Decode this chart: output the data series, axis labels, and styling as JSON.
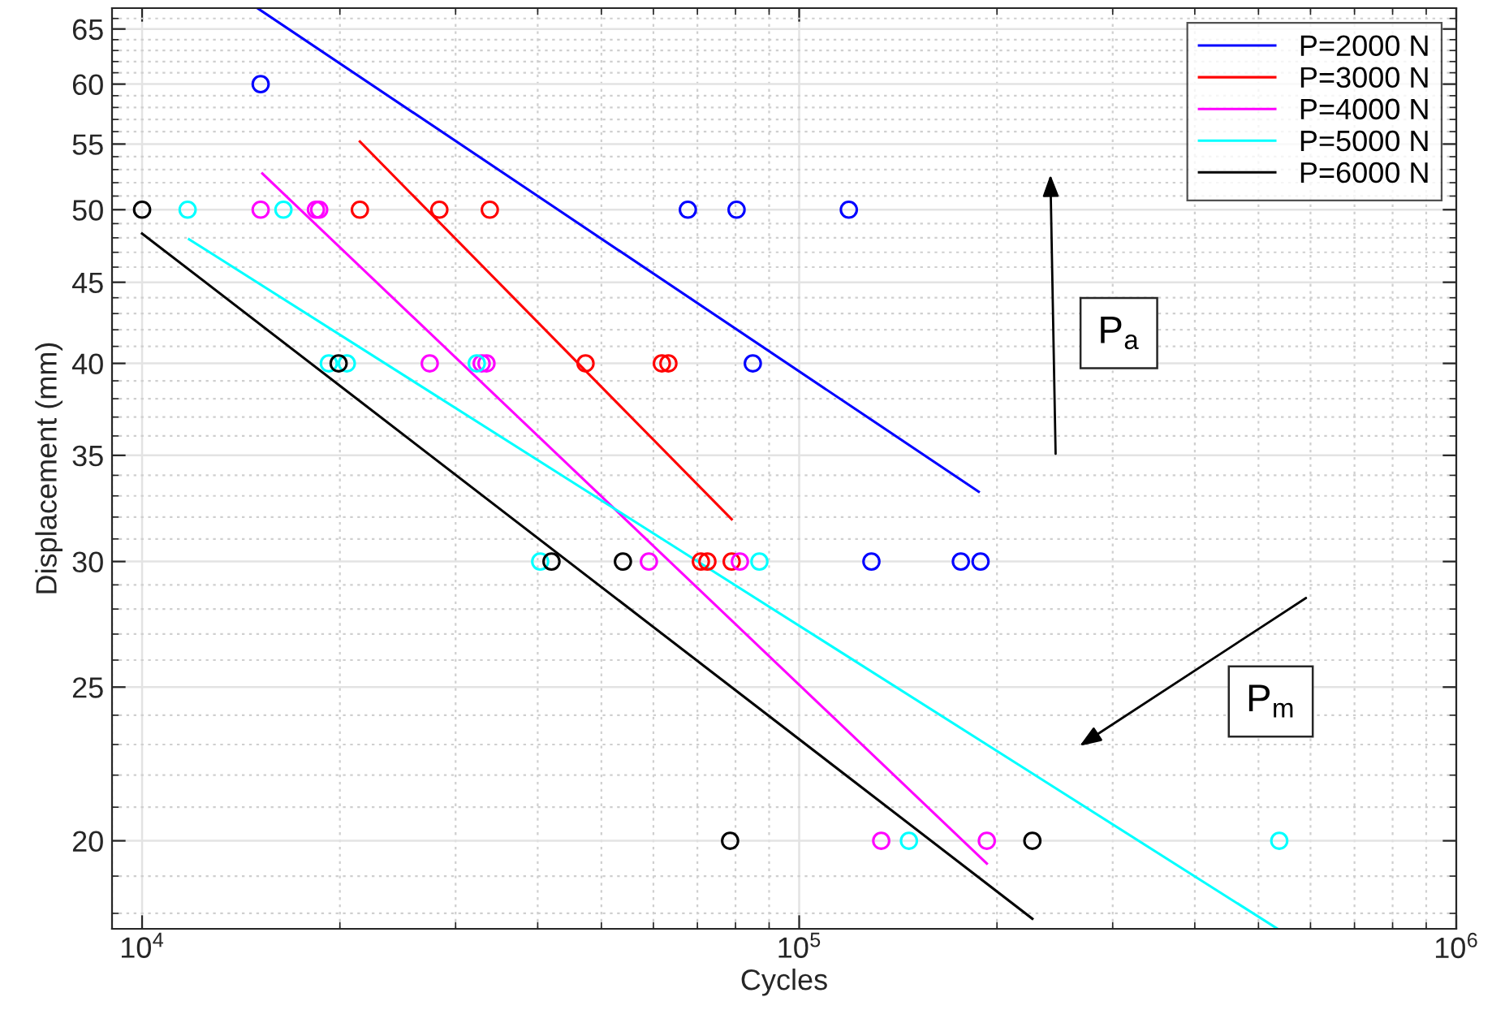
{
  "chart_data": {
    "type": "scatter",
    "xlabel": "Cycles",
    "ylabel": "Displacement (mm)",
    "log": "xy",
    "xlim": [
      9000,
      1000000
    ],
    "ylim": [
      17.6,
      67
    ],
    "xticks": [
      {
        "value": 10000,
        "label": "10$^{4}$"
      },
      {
        "value": 100000,
        "label": "10$^{5}$"
      },
      {
        "value": 1000000,
        "label": "10$^{6}$"
      }
    ],
    "yticks": [
      20,
      25,
      30,
      35,
      40,
      45,
      50,
      55,
      60,
      65
    ],
    "grid": true,
    "legend": "top right",
    "series": [
      {
        "marker": "circle",
        "color": "#0000ff",
        "x": [
          15150,
          67700,
          80300,
          119000,
          85000,
          128800,
          176200,
          188800
        ],
        "values": [
          60,
          50,
          50,
          50,
          40,
          30,
          30,
          30
        ]
      },
      {
        "marker": "circle",
        "color": "#ff0000",
        "x": [
          21450,
          28340,
          33820,
          47300,
          61800,
          63240,
          70860,
          72500,
          78930
        ],
        "values": [
          50,
          50,
          50,
          40,
          40,
          40,
          30,
          30,
          30
        ]
      },
      {
        "marker": "circle",
        "color": "#ff00ff",
        "x": [
          15150,
          18390,
          18600,
          27400,
          32870,
          33430,
          59060,
          81240,
          133300,
          193000
        ],
        "values": [
          50,
          50,
          50,
          40,
          40,
          40,
          30,
          30,
          20,
          20
        ]
      },
      {
        "marker": "circle",
        "color": "#00ffff",
        "x": [
          11730,
          16410,
          19240,
          20490,
          32310,
          40350,
          86990,
          146900,
          537800
        ],
        "values": [
          50,
          50,
          40,
          40,
          40,
          30,
          30,
          20,
          20
        ]
      },
      {
        "marker": "circle",
        "color": "#000000",
        "x": [
          10000,
          19910,
          41980,
          53920,
          78500,
          226400
        ],
        "values": [
          50,
          40,
          30,
          30,
          20,
          20
        ]
      },
      {
        "type": "line",
        "marker": "none",
        "name": "P=2000 N",
        "color": "#0000ff",
        "x": [
          14980,
          187600
        ],
        "values": [
          67,
          33.2
        ]
      },
      {
        "type": "line",
        "marker": "none",
        "name": "P=3000 N",
        "color": "#ff0000",
        "x": [
          21450,
          78930
        ],
        "values": [
          55.2,
          31.9
        ]
      },
      {
        "type": "line",
        "marker": "none",
        "name": "P=4000 N",
        "color": "#ff00ff",
        "x": [
          15240,
          193000
        ],
        "values": [
          52.7,
          19.35
        ]
      },
      {
        "type": "line",
        "marker": "none",
        "name": "P=5000 N",
        "color": "#00ffff",
        "x": [
          11790,
          534600
        ],
        "values": [
          47.9,
          17.6
        ]
      },
      {
        "type": "line",
        "marker": "none",
        "name": "P=6000 N",
        "color": "#000000",
        "x": [
          10000,
          226400
        ],
        "values": [
          48.3,
          17.86
        ]
      }
    ],
    "annotations": [
      "P$_{a}$",
      "P$_{m}$"
    ]
  }
}
